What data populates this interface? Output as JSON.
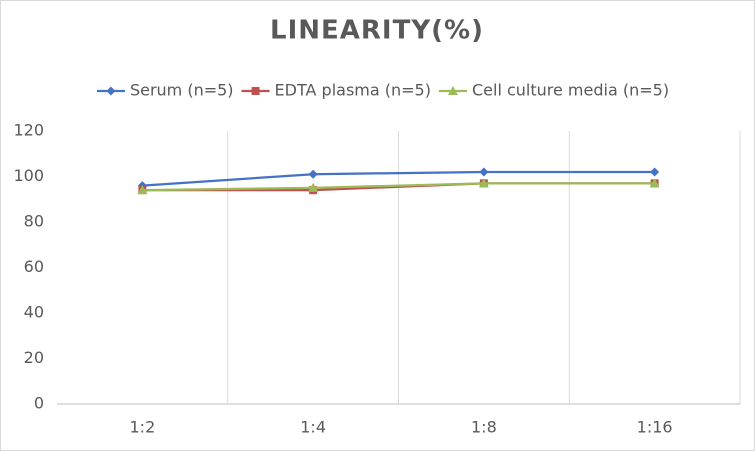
{
  "chart_data": {
    "type": "line",
    "title": "LINEARITY(%)",
    "categories": [
      "1:2",
      "1:4",
      "1:8",
      "1:16"
    ],
    "series": [
      {
        "name": "Serum (n=5)",
        "color": "#4472c4",
        "marker": "diamond",
        "values": [
          96,
          101,
          102,
          102
        ]
      },
      {
        "name": "EDTA plasma (n=5)",
        "color": "#c0504d",
        "marker": "square",
        "values": [
          94,
          94,
          97,
          97
        ]
      },
      {
        "name": "Cell culture media (n=5)",
        "color": "#9bbb59",
        "marker": "triangle",
        "values": [
          94,
          95,
          97,
          97
        ]
      }
    ],
    "ylim": [
      0,
      120
    ],
    "yticks": [
      0,
      20,
      40,
      60,
      80,
      100,
      120
    ],
    "grid": true,
    "legend": "top"
  }
}
